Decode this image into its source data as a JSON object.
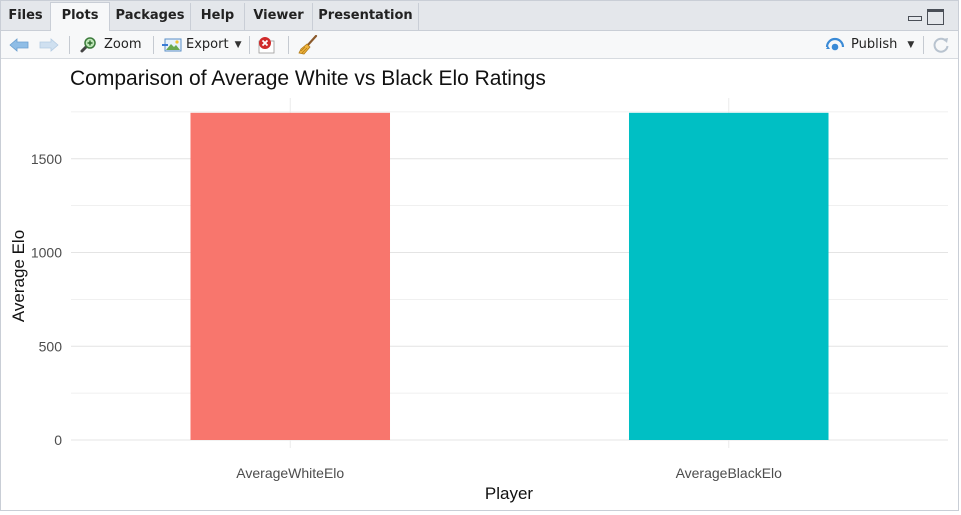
{
  "tabs": [
    {
      "label": "Files"
    },
    {
      "label": "Plots"
    },
    {
      "label": "Packages"
    },
    {
      "label": "Help"
    },
    {
      "label": "Viewer"
    },
    {
      "label": "Presentation"
    }
  ],
  "active_tab": "Plots",
  "toolbar": {
    "zoom_label": "Zoom",
    "export_label": "Export",
    "publish_label": "Publish"
  },
  "colors": {
    "white_bar": "#f8766d",
    "black_bar": "#00bfc4",
    "publish_accent": "#3a8ad6"
  },
  "icons": [
    "back-arrow-icon",
    "forward-arrow-icon",
    "zoom-magnifier-icon",
    "export-image-icon",
    "remove-plot-icon",
    "broom-clear-icon",
    "publish-icon",
    "refresh-icon"
  ],
  "chart_data": {
    "type": "bar",
    "title": "Comparison of Average White vs Black Elo Ratings",
    "xlabel": "Player",
    "ylabel": "Average Elo",
    "categories": [
      "AverageWhiteElo",
      "AverageBlackElo"
    ],
    "values": [
      1745,
      1745
    ],
    "ylim": [
      0,
      1760
    ],
    "yticks": [
      0,
      500,
      1000,
      1500
    ],
    "grid": true,
    "legend": "none"
  }
}
